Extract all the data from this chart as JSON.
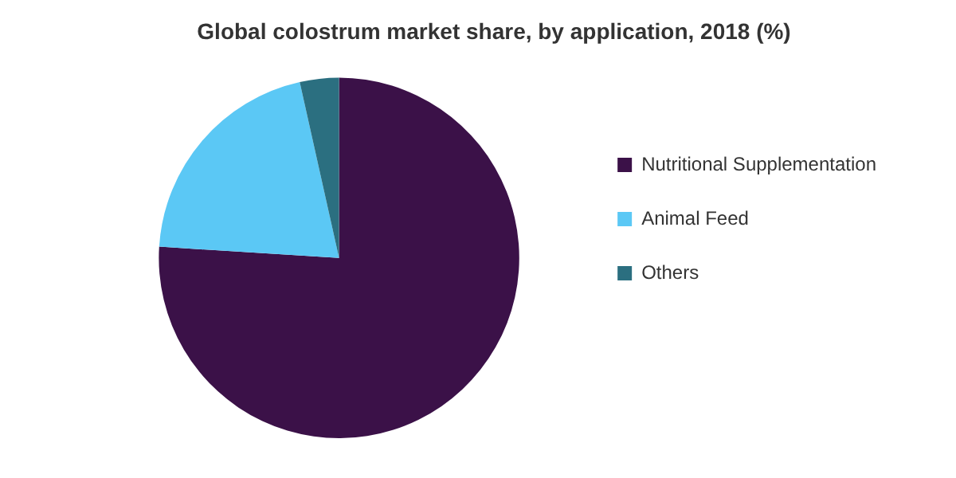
{
  "chart_data": {
    "type": "pie",
    "title": "Global colostrum market share, by application, 2018 (%)",
    "categories": [
      "Nutritional Supplementation",
      "Animal Feed",
      "Others"
    ],
    "values": [
      76,
      20.5,
      3.5
    ],
    "colors": [
      "#3b1148",
      "#5bc8f5",
      "#2b6f80"
    ],
    "legend": "right"
  }
}
